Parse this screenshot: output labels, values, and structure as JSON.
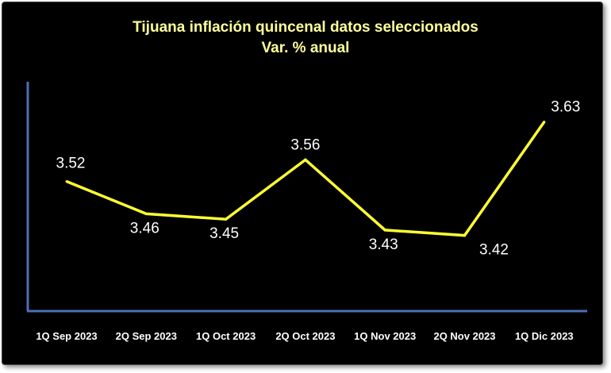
{
  "chart_data": {
    "type": "line",
    "title": "Tijuana inflación quincenal datos seleccionados",
    "subtitle": "Var. % anual",
    "xlabel": "",
    "ylabel": "",
    "categories": [
      "1Q Sep 2023",
      "2Q Sep 2023",
      "1Q Oct 2023",
      "2Q Oct 2023",
      "1Q Nov 2023",
      "2Q Nov 2023",
      "1Q Dic 2023"
    ],
    "series": [
      {
        "name": "Tijuana",
        "values": [
          3.52,
          3.46,
          3.45,
          3.56,
          3.43,
          3.42,
          3.63
        ],
        "labels": [
          "3.52",
          "3.46",
          "3.45",
          "3.56",
          "3.43",
          "3.42",
          "3.63"
        ],
        "color": "#ffff33"
      }
    ],
    "ylim": [
      3.28,
      3.7
    ],
    "grid": false,
    "legend": "none"
  },
  "colors": {
    "background": "#000000",
    "title": "#ffff99",
    "axis": "#4f6fb3",
    "line": "#ffff33",
    "text": "#ffffff"
  }
}
